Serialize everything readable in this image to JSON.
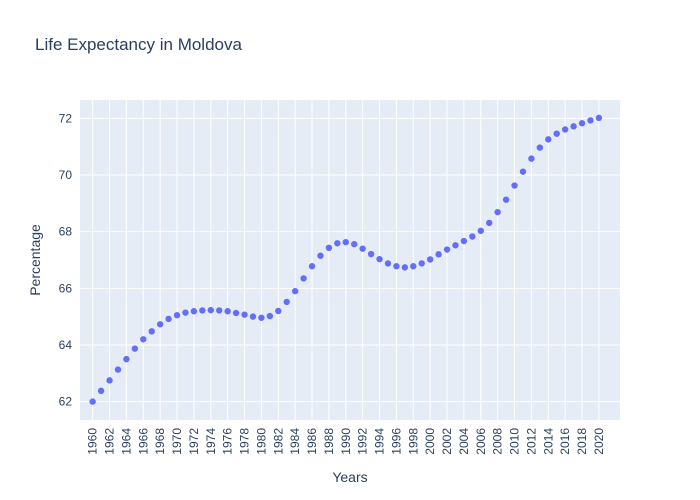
{
  "chart_data": {
    "type": "scatter",
    "title": "Life Expectancy in Moldova",
    "xlabel": "Years",
    "ylabel": "Percentage",
    "x": [
      1960,
      1961,
      1962,
      1963,
      1964,
      1965,
      1966,
      1967,
      1968,
      1969,
      1970,
      1971,
      1972,
      1973,
      1974,
      1975,
      1976,
      1977,
      1978,
      1979,
      1980,
      1981,
      1982,
      1983,
      1984,
      1985,
      1986,
      1987,
      1988,
      1989,
      1990,
      1991,
      1992,
      1993,
      1994,
      1995,
      1996,
      1997,
      1998,
      1999,
      2000,
      2001,
      2002,
      2003,
      2004,
      2005,
      2006,
      2007,
      2008,
      2009,
      2010,
      2011,
      2012,
      2013,
      2014,
      2015,
      2016,
      2017,
      2018,
      2019,
      2020
    ],
    "y": [
      62.0,
      62.38,
      62.75,
      63.13,
      63.5,
      63.87,
      64.2,
      64.48,
      64.73,
      64.92,
      65.05,
      65.14,
      65.19,
      65.22,
      65.23,
      65.22,
      65.19,
      65.13,
      65.07,
      65.0,
      64.96,
      65.02,
      65.2,
      65.52,
      65.9,
      66.35,
      66.78,
      67.15,
      67.43,
      67.59,
      67.63,
      67.56,
      67.4,
      67.21,
      67.03,
      66.88,
      66.78,
      66.74,
      66.78,
      66.88,
      67.02,
      67.2,
      67.37,
      67.52,
      67.67,
      67.83,
      68.03,
      68.31,
      68.69,
      69.13,
      69.63,
      70.12,
      70.58,
      70.97,
      71.26,
      71.46,
      71.61,
      71.72,
      71.83,
      71.93,
      72.02
    ],
    "xticks": [
      "1960",
      "1962",
      "1964",
      "1966",
      "1968",
      "1970",
      "1972",
      "1974",
      "1976",
      "1978",
      "1980",
      "1982",
      "1984",
      "1986",
      "1988",
      "1990",
      "1992",
      "1994",
      "1996",
      "1998",
      "2000",
      "2002",
      "2004",
      "2006",
      "2008",
      "2010",
      "2012",
      "2014",
      "2016",
      "2018",
      "2020"
    ],
    "yticks": [
      "62",
      "64",
      "66",
      "68",
      "70",
      "72"
    ],
    "xlim": [
      1958.5,
      2022.5
    ],
    "ylim": [
      61.35,
      72.65
    ],
    "grid": true,
    "legend": false,
    "colors": {
      "marker": "#636efa",
      "plot_bg": "#e5ecf6",
      "grid": "#ffffff",
      "text": "#2a3f5f"
    }
  }
}
